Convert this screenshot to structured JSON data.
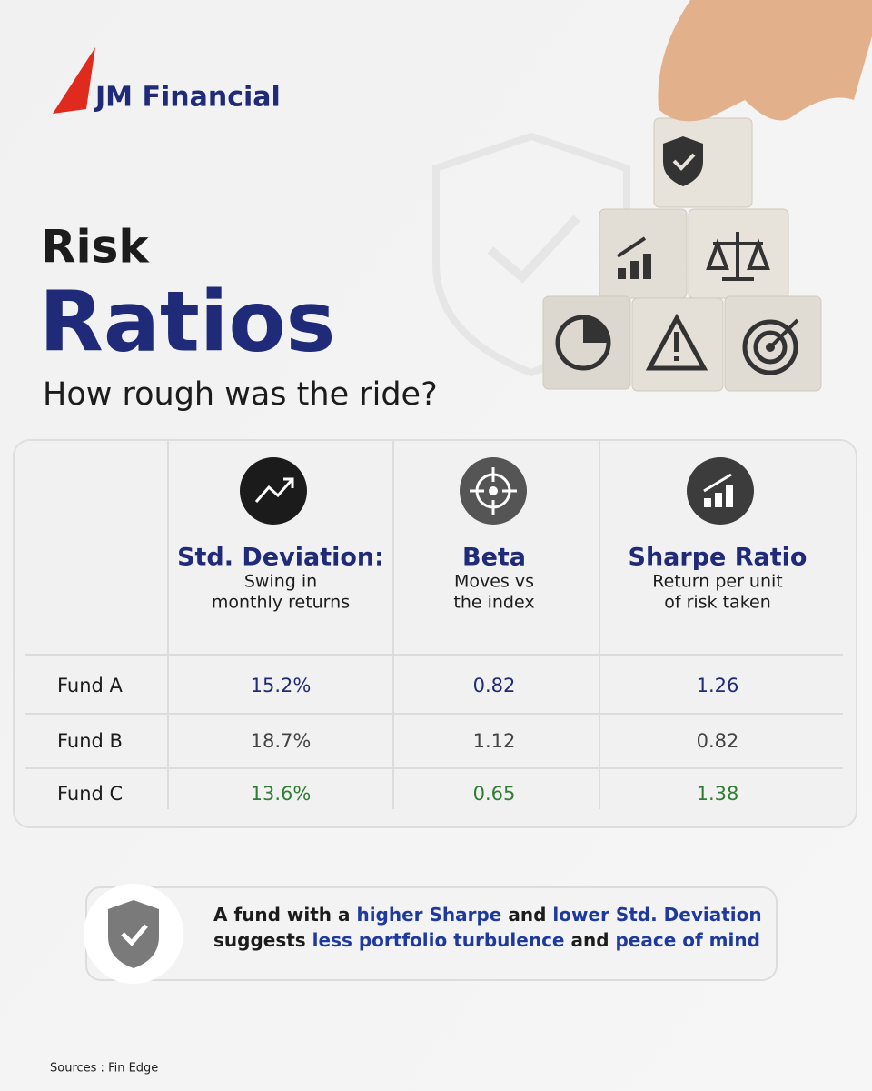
{
  "logo": {
    "text": "JM Financial"
  },
  "header": {
    "title_line1": "Risk",
    "title_line2": "Ratios",
    "subtitle": "How rough was the ride?"
  },
  "table": {
    "columns": [
      {
        "title": "Std. Deviation:",
        "description": [
          "Swing in",
          "monthly returns"
        ]
      },
      {
        "title": "Beta",
        "description": [
          "Moves vs",
          "the index"
        ]
      },
      {
        "title": "Sharpe Ratio",
        "description": [
          "Return per unit",
          "of risk taken"
        ]
      }
    ],
    "rows": [
      {
        "fund": "Fund A",
        "values": [
          "15.2%",
          "0.82",
          "1.26"
        ],
        "color": "#1f2a78"
      },
      {
        "fund": "Fund B",
        "values": [
          "18.7%",
          "1.12",
          "0.82"
        ],
        "color": "#444444"
      },
      {
        "fund": "Fund C",
        "values": [
          "13.6%",
          "0.65",
          "1.38"
        ],
        "color": "#2e7d32"
      }
    ]
  },
  "note": {
    "lines": [
      [
        {
          "text": "A fund with a "
        },
        {
          "text": "higher Sharpe",
          "highlight": true
        },
        {
          "text": " and "
        },
        {
          "text": "lower Std. Deviation",
          "highlight": true
        }
      ],
      [
        {
          "text": "suggests "
        },
        {
          "text": "less portfolio turbulence",
          "highlight": true
        },
        {
          "text": " and "
        },
        {
          "text": "peace of mind",
          "highlight": true
        }
      ]
    ]
  },
  "footer": {
    "sources": "Sources : Fin Edge"
  }
}
